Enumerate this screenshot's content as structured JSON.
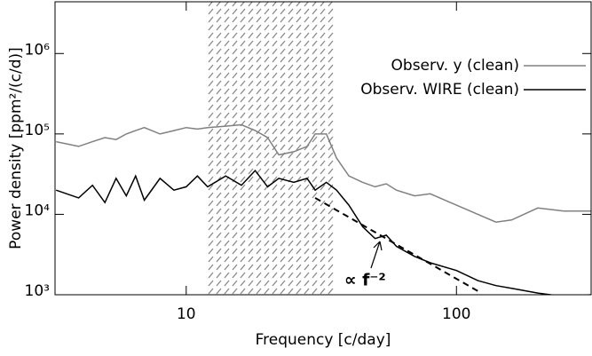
{
  "chart_data": {
    "type": "line",
    "x_label": "Frequency [c/day]",
    "y_label": "Power density [ppm²/(c/d)]",
    "x_log": true,
    "y_log": true,
    "xlim": [
      3.27,
      315
    ],
    "ylim": [
      1000,
      4400000
    ],
    "xticks": [
      10,
      100
    ],
    "yticks": [
      {
        "value": 1000,
        "label": "10³"
      },
      {
        "value": 10000,
        "label": "10⁴"
      },
      {
        "value": 100000,
        "label": "10⁵"
      },
      {
        "value": 1000000,
        "label": "10⁶"
      }
    ],
    "x": [
      3.3,
      4,
      4.5,
      5,
      5.5,
      6,
      6.5,
      7,
      8,
      9,
      10,
      11,
      12,
      14,
      16,
      18,
      20,
      22,
      25,
      28,
      30,
      33,
      36,
      40,
      45,
      50,
      55,
      60,
      70,
      80,
      100,
      120,
      140,
      160,
      200,
      250,
      315
    ],
    "series": [
      {
        "name": "Observ. y (clean)",
        "color": "#808080",
        "values": [
          80000,
          70000,
          80000,
          90000,
          85000,
          100000,
          110000,
          120000,
          100000,
          110000,
          120000,
          115000,
          120000,
          125000,
          130000,
          110000,
          90000,
          55000,
          60000,
          70000,
          100000,
          100000,
          50000,
          30000,
          25000,
          22000,
          24000,
          20000,
          17000,
          18000,
          13000,
          10000,
          8000,
          8500,
          12000,
          11000,
          11000
        ]
      },
      {
        "name": "Observ. WIRE (clean)",
        "color": "#000000",
        "values": [
          20000,
          16000,
          23000,
          14000,
          28000,
          17000,
          30000,
          15000,
          28000,
          20000,
          22000,
          30000,
          22000,
          30000,
          23000,
          35000,
          22000,
          28000,
          25000,
          28000,
          20000,
          25000,
          20000,
          13000,
          7000,
          5000,
          5500,
          4000,
          3000,
          2500,
          2000,
          1500,
          1300,
          1200,
          1050,
          950,
          1000
        ]
      }
    ],
    "shaded_region": [
      12,
      35
    ],
    "fit_line": {
      "x": [
        30,
        123
      ],
      "values": [
        16000,
        1060
      ]
    },
    "annotation": "∝ f⁻²"
  }
}
